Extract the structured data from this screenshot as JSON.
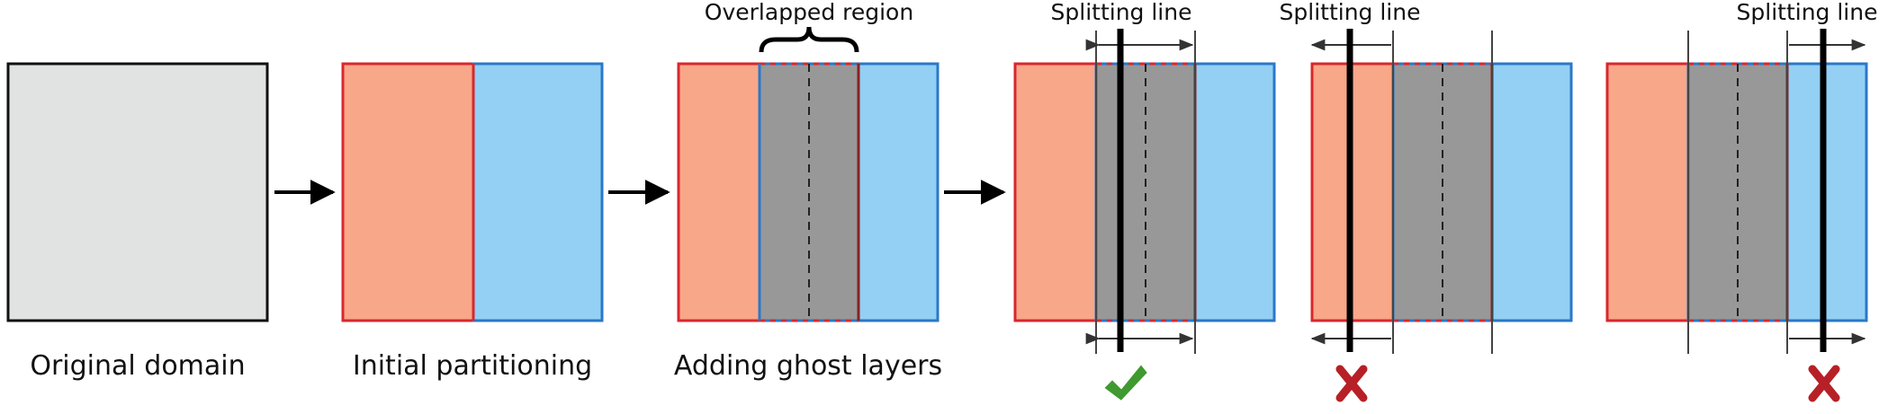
{
  "captions": {
    "original": "Original domain",
    "initial": "Initial partitioning",
    "ghost": "Adding ghost layers"
  },
  "labels": {
    "overlapped_region": "Overlapped region",
    "splitting_line_1": "Splitting line",
    "splitting_line_2": "Splitting line",
    "splitting_line_3": "Splitting line"
  },
  "colors": {
    "domain_fill": "#e1e2e2",
    "left_fill": "#f8a789",
    "left_border": "#d9272e",
    "right_fill": "#93d0f4",
    "right_border": "#2a78c8",
    "overlap_fill": "#989898",
    "check": "#3f9a2f",
    "cross": "#b72026"
  },
  "icons": {
    "valid": "check-mark-icon",
    "invalid": "cross-mark-icon"
  }
}
